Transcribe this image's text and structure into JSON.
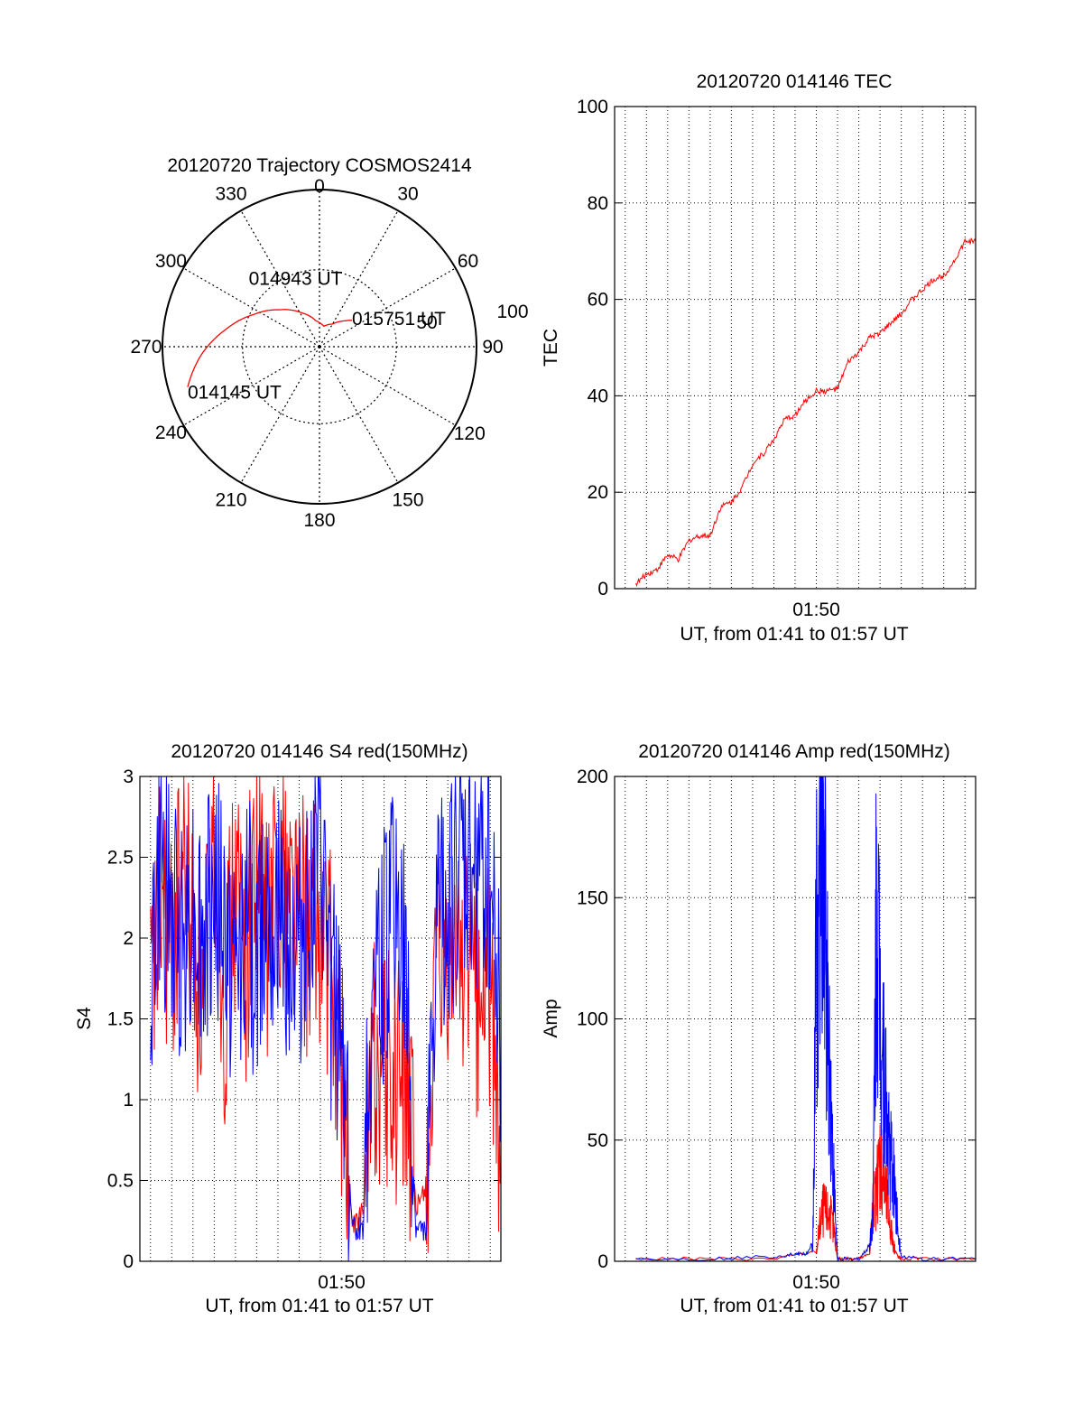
{
  "chart_data": [
    {
      "id": "trajectory",
      "type": "polar",
      "title": "20120720 Trajectory COSMOS2414",
      "angle_labels": [
        "0",
        "30",
        "60",
        "90",
        "120",
        "150",
        "180",
        "210",
        "240",
        "270",
        "300",
        "330"
      ],
      "radial_labels": [
        "50",
        "100"
      ],
      "elevation_rings": [
        50,
        100
      ],
      "track_color": "#ff0000",
      "track": [
        {
          "az": 253,
          "el": 11
        },
        {
          "az": 266,
          "el": 22
        },
        {
          "az": 280,
          "el": 35
        },
        {
          "az": 296,
          "el": 48
        },
        {
          "az": 313,
          "el": 59
        },
        {
          "az": 332,
          "el": 68
        },
        {
          "az": 352,
          "el": 75
        },
        {
          "az": 12,
          "el": 78
        },
        {
          "az": 30,
          "el": 75
        },
        {
          "az": 45,
          "el": 69
        },
        {
          "az": 51,
          "el": 66
        }
      ],
      "point_labels": [
        {
          "text": "014145 UT",
          "az": 253,
          "el": 11
        },
        {
          "text": "014943 UT",
          "az": 340,
          "el": 50
        },
        {
          "text": "015751 UT",
          "az": 51,
          "el": 66
        }
      ]
    },
    {
      "id": "tec",
      "type": "line",
      "title": "20120720 014146 TEC",
      "xlabel": "UT, from 01:41 to 01:57 UT",
      "ylabel": "TEC",
      "xlim": [
        "01:40:30",
        "01:57:30"
      ],
      "ylim": [
        0,
        100
      ],
      "yticks": [
        0,
        20,
        40,
        60,
        80,
        100
      ],
      "xticks": [
        "01:50"
      ],
      "grid": true,
      "series": [
        {
          "color": "#ff0000",
          "x": [
            "01:41:30",
            "01:42:00",
            "01:42:30",
            "01:43:00",
            "01:43:30",
            "01:44:00",
            "01:44:30",
            "01:45:00",
            "01:45:30",
            "01:46:00",
            "01:46:30",
            "01:47:00",
            "01:47:30",
            "01:48:00",
            "01:48:30",
            "01:49:00",
            "01:49:30",
            "01:50:00",
            "01:50:30",
            "01:51:00",
            "01:51:30",
            "01:52:00",
            "01:52:30",
            "01:53:00",
            "01:53:30",
            "01:54:00",
            "01:54:30",
            "01:55:00",
            "01:55:30",
            "01:56:00",
            "01:56:30",
            "01:57:00",
            "01:57:30"
          ],
          "values": [
            1,
            3,
            4,
            7,
            6,
            10,
            11,
            11,
            17,
            18,
            21,
            26,
            28,
            31,
            35,
            36,
            39,
            41,
            41,
            41.5,
            47,
            49,
            52,
            53,
            55,
            57,
            60,
            62,
            64,
            65,
            68,
            72,
            72
          ]
        }
      ]
    },
    {
      "id": "s4",
      "type": "line",
      "title": "20120720 014146 S4 red(150MHz)",
      "xlabel": "UT, from 01:41 to 01:57 UT",
      "ylabel": "S4",
      "xlim": [
        "01:40:30",
        "01:57:30"
      ],
      "ylim": [
        0,
        3
      ],
      "yticks": [
        "0",
        "0.5",
        "1",
        "1.5",
        "2",
        "2.5",
        "3"
      ],
      "xticks": [
        "01:50"
      ],
      "grid": true,
      "series": [
        {
          "color": "#ff0000",
          "x": [
            "01:41:00",
            "01:41:30",
            "01:42:00",
            "01:42:30",
            "01:43:00",
            "01:43:30",
            "01:44:00",
            "01:44:30",
            "01:45:00",
            "01:45:30",
            "01:46:00",
            "01:46:30",
            "01:47:00",
            "01:47:30",
            "01:48:00",
            "01:48:30",
            "01:49:00",
            "01:49:30",
            "01:50:00",
            "01:50:30",
            "01:51:00",
            "01:51:30",
            "01:52:00",
            "01:52:30",
            "01:53:00",
            "01:53:30",
            "01:54:00",
            "01:54:30",
            "01:55:00",
            "01:55:30",
            "01:56:00",
            "01:56:30",
            "01:57:00",
            "01:57:30"
          ],
          "values": [
            1.5,
            2.3,
            1.8,
            2.5,
            2.0,
            1.5,
            2.7,
            1.6,
            2.3,
            1.9,
            2.6,
            2.0,
            2.5,
            2.4,
            2.2,
            2.0,
            2.1,
            1.8,
            1.2,
            0.2,
            0.3,
            1.3,
            1.2,
            1.1,
            1.2,
            0.3,
            0.5,
            1.7,
            1.8,
            2.0,
            1.9,
            1.6,
            1.7,
            0.6
          ]
        },
        {
          "color": "#0000ff",
          "x": [
            "01:41:00",
            "01:41:30",
            "01:42:00",
            "01:42:30",
            "01:43:00",
            "01:43:30",
            "01:44:00",
            "01:44:30",
            "01:45:00",
            "01:45:30",
            "01:46:00",
            "01:46:30",
            "01:47:00",
            "01:47:30",
            "01:48:00",
            "01:48:30",
            "01:49:00",
            "01:49:30",
            "01:50:00",
            "01:50:30",
            "01:51:00",
            "01:51:30",
            "01:52:00",
            "01:52:30",
            "01:53:00",
            "01:53:30",
            "01:54:00",
            "01:54:30",
            "01:55:00",
            "01:55:30",
            "01:56:00",
            "01:56:30",
            "01:57:00",
            "01:57:30"
          ],
          "values": [
            1.8,
            2.4,
            2.1,
            2.0,
            2.2,
            1.9,
            2.3,
            2.0,
            1.7,
            2.2,
            1.8,
            2.4,
            2.1,
            2.0,
            1.9,
            2.2,
            2.5,
            1.6,
            1.5,
            0.2,
            0.2,
            1.8,
            1.9,
            2.3,
            1.7,
            0.2,
            0.2,
            2.1,
            2.2,
            2.4,
            2.3,
            2.5,
            2.4,
            1.4
          ]
        }
      ]
    },
    {
      "id": "amp",
      "type": "line",
      "title": "20120720 014146 Amp red(150MHz)",
      "xlabel": "UT, from 01:41 to 01:57 UT",
      "ylabel": "Amp",
      "xlim": [
        "01:40:30",
        "01:57:30"
      ],
      "ylim": [
        0,
        200
      ],
      "yticks": [
        0,
        50,
        100,
        150,
        200
      ],
      "xticks": [
        "01:50"
      ],
      "grid": true,
      "series": [
        {
          "color": "#ff0000",
          "x": [
            "01:41:30",
            "01:45:00",
            "01:48:00",
            "01:50:00",
            "01:50:10",
            "01:50:20",
            "01:50:30",
            "01:50:40",
            "01:50:50",
            "01:51:00",
            "01:51:30",
            "01:52:00",
            "01:52:30",
            "01:52:40",
            "01:52:50",
            "01:53:00",
            "01:53:10",
            "01:53:20",
            "01:53:30",
            "01:53:40",
            "01:53:50",
            "01:54:00",
            "01:55:00",
            "01:57:30"
          ],
          "values": [
            1,
            1,
            1,
            4,
            15,
            22,
            20,
            18,
            12,
            1,
            1,
            1,
            3,
            22,
            28,
            45,
            35,
            24,
            14,
            6,
            2,
            1,
            1,
            1
          ]
        },
        {
          "color": "#0000ff",
          "x": [
            "01:41:30",
            "01:45:00",
            "01:48:00",
            "01:49:00",
            "01:49:30",
            "01:49:50",
            "01:50:00",
            "01:50:10",
            "01:50:20",
            "01:50:30",
            "01:50:40",
            "01:50:50",
            "01:51:00",
            "01:51:30",
            "01:52:00",
            "01:52:30",
            "01:52:40",
            "01:52:50",
            "01:53:00",
            "01:53:10",
            "01:53:20",
            "01:53:30",
            "01:53:40",
            "01:53:50",
            "01:54:00",
            "01:55:00",
            "01:57:30"
          ],
          "values": [
            1,
            1,
            2,
            3,
            3,
            6,
            132,
            167,
            175,
            110,
            70,
            30,
            1,
            1,
            1,
            6,
            20,
            150,
            108,
            85,
            55,
            42,
            32,
            15,
            2,
            1,
            1
          ]
        }
      ]
    }
  ]
}
